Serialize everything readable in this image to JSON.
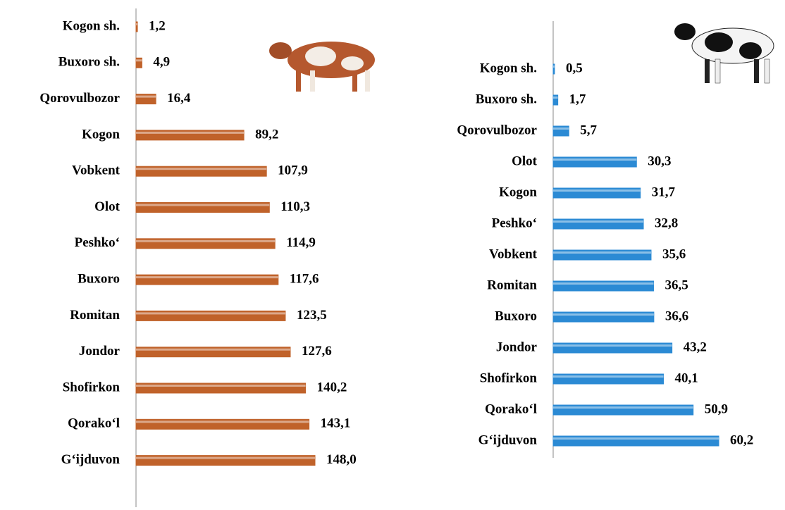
{
  "chart_data": [
    {
      "type": "bar",
      "orientation": "horizontal",
      "color": "#c0622a",
      "categories": [
        "Kogon sh.",
        "Buxoro sh.",
        "Qorovulbozor",
        "Kogon",
        "Vobkent",
        "Olot",
        "Peshko‘",
        "Buxoro",
        "Romitan",
        "Jondor",
        "Shofirkon",
        "Qorako‘l",
        "G‘ijduvon"
      ],
      "values": [
        1.2,
        4.9,
        16.4,
        89.2,
        107.9,
        110.3,
        114.9,
        117.6,
        123.5,
        127.6,
        140.2,
        143.1,
        148.0
      ],
      "value_labels": [
        "1,2",
        "4,9",
        "16,4",
        "89,2",
        "107,9",
        "110,3",
        "114,9",
        "117,6",
        "123,5",
        "127,6",
        "140,2",
        "143,1",
        "148,0"
      ]
    },
    {
      "type": "bar",
      "orientation": "horizontal",
      "color": "#2b8ad4",
      "categories": [
        "Kogon sh.",
        "Buxoro sh.",
        "Qorovulbozor",
        "Olot",
        "Kogon",
        "Peshko‘",
        "Vobkent",
        "Romitan",
        "Buxoro",
        "Jondor",
        "Shofirkon",
        "Qorako‘l",
        "G‘ijduvon"
      ],
      "values": [
        0.5,
        1.7,
        5.7,
        30.3,
        31.7,
        32.8,
        35.6,
        36.5,
        36.6,
        43.2,
        40.1,
        50.9,
        60.2
      ],
      "value_labels": [
        "0,5",
        "1,7",
        "5,7",
        "30,3",
        "31,7",
        "32,8",
        "35,6",
        "36,5",
        "36,6",
        "43,2",
        "40,1",
        "50,9",
        "60,2"
      ]
    }
  ]
}
